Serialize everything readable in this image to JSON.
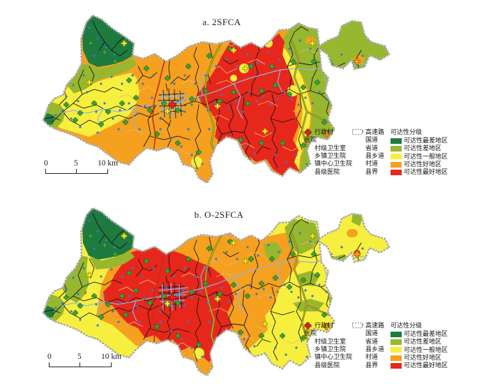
{
  "figure": {
    "type": "dual-panel accessibility map figure"
  },
  "maps": [
    {
      "id": "a",
      "title": "a. 2SFCA",
      "scale": {
        "s0": "0",
        "s5": "5",
        "s10": "10 km"
      }
    },
    {
      "id": "b",
      "title": "b. O-2SFCA",
      "scale": {
        "s0": "0",
        "s5": "5",
        "s10": "10 km"
      }
    }
  ],
  "legend": {
    "points": [
      {
        "label": "行政村",
        "icon": "village-dot"
      },
      {
        "label": "医院",
        "icon": "header"
      },
      {
        "label": "村级卫生室",
        "icon": "cross-clinic"
      },
      {
        "label": "乡镇卫生院",
        "icon": "cross-township"
      },
      {
        "label": "镇中心卫生院",
        "icon": "cross-towncenter"
      },
      {
        "label": "县级医院",
        "icon": "cross-county"
      }
    ],
    "lines": [
      {
        "label": "高速路",
        "style": "highway"
      },
      {
        "label": "国道",
        "style": "national"
      },
      {
        "label": "省道",
        "style": "provincial"
      },
      {
        "label": "县乡道",
        "style": "county-road"
      },
      {
        "label": "村道",
        "style": "village-road"
      },
      {
        "label": "县界",
        "style": "boundary"
      }
    ],
    "classes": {
      "title": "可达性分级",
      "items": [
        {
          "label": "可达性最差地区",
          "color": "#1E7B3F"
        },
        {
          "label": "可达性差地区",
          "color": "#96B72E"
        },
        {
          "label": "可达性一般地区",
          "color": "#F7EF3E"
        },
        {
          "label": "可达性好地区",
          "color": "#F5A01E"
        },
        {
          "label": "可达性最好地区",
          "color": "#E8271C"
        }
      ]
    }
  },
  "colors": {
    "class_worst": "#1E7B3F",
    "class_poor": "#96B72E",
    "class_avg": "#F7EF3E",
    "class_good": "#F5A01E",
    "class_best": "#E8271C",
    "road_highway": "#7a7a1a",
    "road_highway_inner": "#c6c63a",
    "road_national": "#C62A1C",
    "road_provincial": "#8FB4E3",
    "road_county": "#161616",
    "road_village": "#F4B96A",
    "boundary_gray": "#b3b3b3",
    "poi_village": "#3B78C9",
    "poi_clinic": "#3DA83D",
    "poi_township": "#F2E32B",
    "poi_towncenter": "#F5A01E",
    "poi_county": "#E8271C"
  }
}
